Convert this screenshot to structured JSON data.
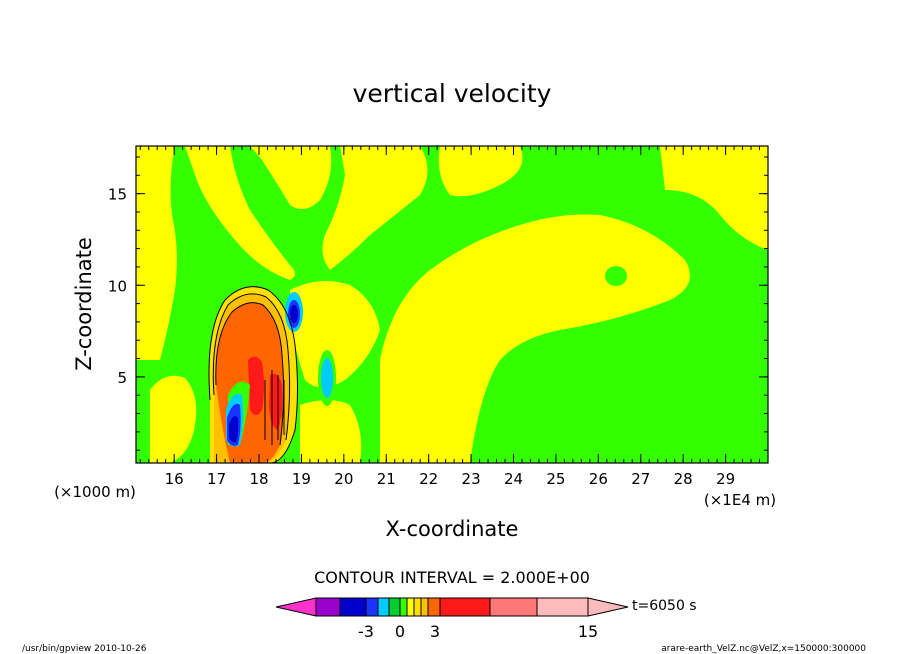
{
  "chart_data": {
    "type": "heatmap",
    "title": "vertical velocity",
    "xlabel": "X-coordinate",
    "ylabel": "Z-coordinate",
    "x_unit_label": "(×1E4 m)",
    "y_unit_label": "(×1000 m)",
    "x_ticks": [
      16,
      17,
      18,
      19,
      20,
      21,
      22,
      23,
      24,
      25,
      26,
      27,
      28,
      29
    ],
    "y_ticks": [
      5,
      10,
      15
    ],
    "xlim": [
      15.1,
      30.0
    ],
    "ylim": [
      0.3,
      17.6
    ],
    "contour_interval_label": "CONTOUR INTERVAL = 2.000E+00",
    "colorbar": {
      "labels": [
        "-3",
        "0",
        "3",
        "15"
      ],
      "colors": [
        "#ff33cc",
        "#9900cc",
        "#0000cc",
        "#1a33ff",
        "#00ccff",
        "#00cc33",
        "#33ff00",
        "#ffff00",
        "#ffe000",
        "#ffc000",
        "#ff6600",
        "#ff1a1a",
        "#ff7777",
        "#ffbbbb"
      ]
    },
    "time_label": "t=6050 s",
    "features": [
      {
        "name": "updraft core",
        "x": 17.8,
        "z": 6.5,
        "level": "max"
      },
      {
        "name": "downdraft",
        "x": 17.4,
        "z": 2.2,
        "level": "min"
      },
      {
        "name": "downdraft aloft",
        "x": 18.8,
        "z": 8.3,
        "level": "min"
      },
      {
        "name": "weak downdraft",
        "x": 19.6,
        "z": 4.6,
        "level": "min"
      }
    ]
  },
  "footer": {
    "left": "/usr/bin/gpview   2010-10-26",
    "right": "arare-earth_VelZ.nc@VelZ,x=150000:300000"
  }
}
